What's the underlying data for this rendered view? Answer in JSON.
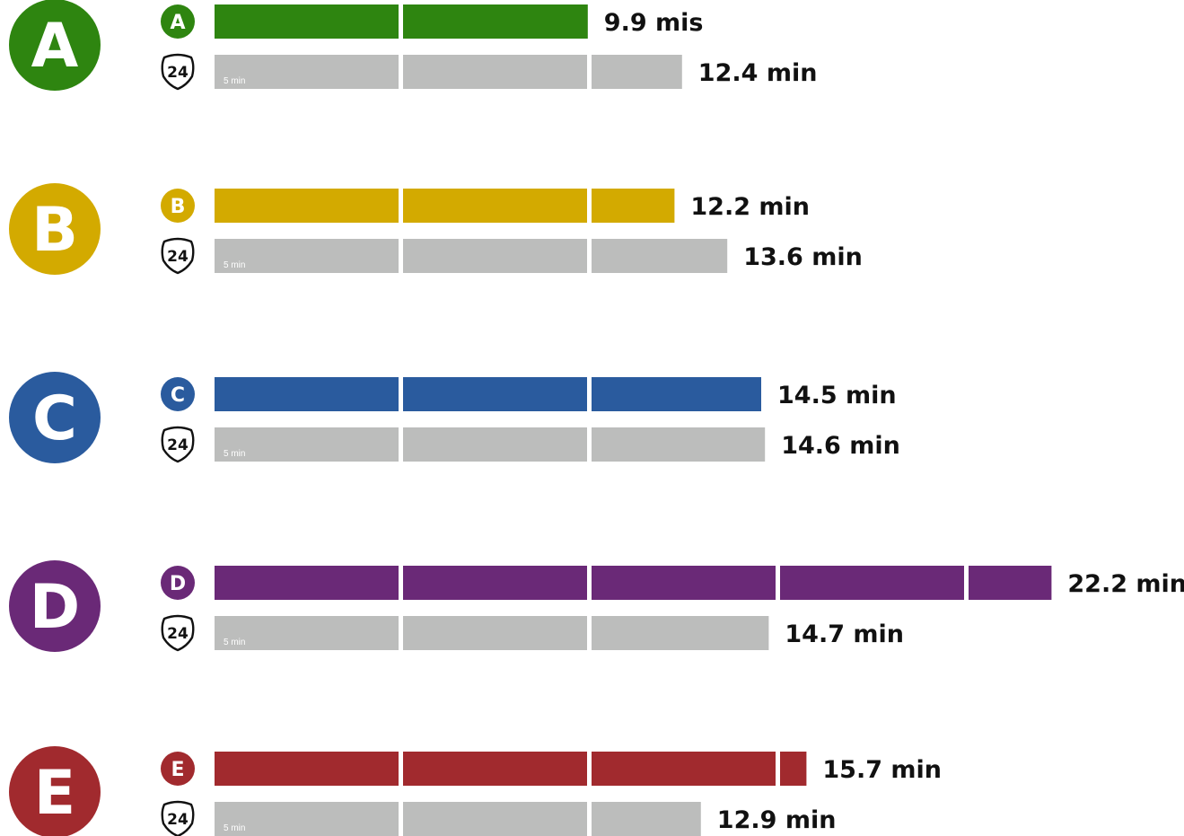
{
  "chart_data": {
    "type": "bar",
    "orientation": "horizontal",
    "segment_minutes": 5,
    "segment_label": "5 min",
    "groups": [
      {
        "letter": "A",
        "color": "#2e8510",
        "series": [
          {
            "name": "A",
            "value": 9.9,
            "label": "9.9 mis"
          },
          {
            "name": "24",
            "value": 12.4,
            "label": "12.4 min"
          }
        ]
      },
      {
        "letter": "B",
        "color": "#d3aa00",
        "series": [
          {
            "name": "B",
            "value": 12.2,
            "label": "12.2 min"
          },
          {
            "name": "24",
            "value": 13.6,
            "label": "13.6 min"
          }
        ]
      },
      {
        "letter": "C",
        "color": "#2a5b9e",
        "series": [
          {
            "name": "C",
            "value": 14.5,
            "label": "14.5 min"
          },
          {
            "name": "24",
            "value": 14.6,
            "label": "14.6 min"
          }
        ]
      },
      {
        "letter": "D",
        "color": "#6a2977",
        "series": [
          {
            "name": "D",
            "value": 22.2,
            "label": "22.2 min"
          },
          {
            "name": "24",
            "value": 14.7,
            "label": "14.7 min"
          }
        ]
      },
      {
        "letter": "E",
        "color": "#a12a2e",
        "series": [
          {
            "name": "E",
            "value": 15.7,
            "label": "15.7 min"
          },
          {
            "name": "24",
            "value": 12.9,
            "label": "12.9 min"
          }
        ]
      }
    ],
    "baseline_color": "#bcbdbc"
  }
}
